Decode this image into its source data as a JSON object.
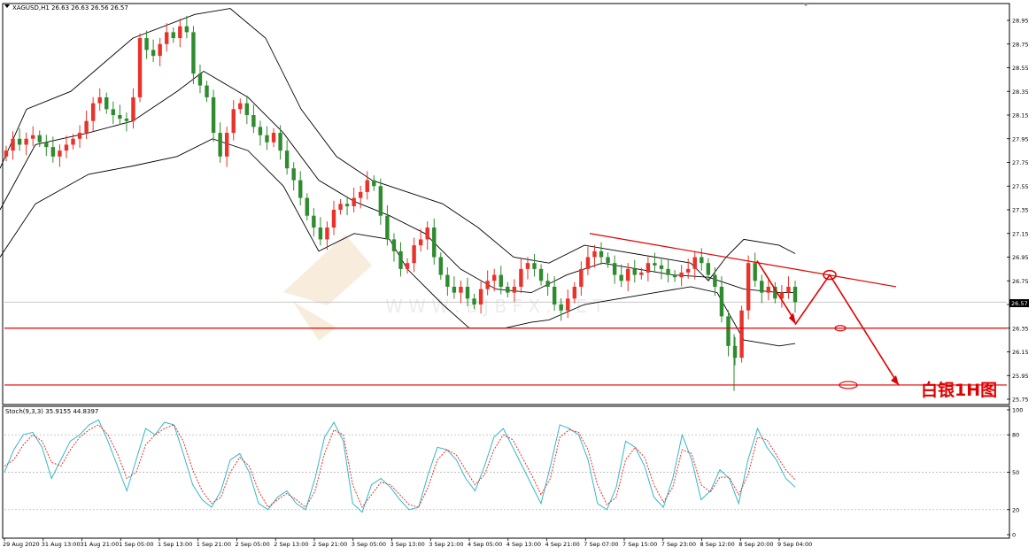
{
  "chart_title": "XAGUSD,H1  26.63 26.63 26.56 26.57",
  "stoch_title": "Stoch(9,3,3) 35.9155 44.8397",
  "annotation": "白银1H图",
  "watermark": "W W W . B J B F X . N E T",
  "colors": {
    "bull": "#e8322a",
    "bear": "#2e8b2e",
    "band": "#000000",
    "annotation": "#e00000",
    "stoch_k": "#35b7c8",
    "stoch_d": "#e8322a"
  },
  "chart_data": [
    {
      "type": "candlestick",
      "symbol": "XAGUSD",
      "timeframe": "H1",
      "ohlc_header": {
        "open": 26.63,
        "high": 26.63,
        "low": 26.56,
        "close": 26.57
      },
      "current_price": 26.57,
      "x_labels": [
        "29 Aug 2020",
        "31 Aug 13:00",
        "31 Aug 21:00",
        "1 Sep 05:00",
        "1 Sep 13:00",
        "1 Sep 21:00",
        "2 Sep 05:00",
        "2 Sep 13:00",
        "2 Sep 21:00",
        "3 Sep 05:00",
        "3 Sep 13:00",
        "3 Sep 21:00",
        "4 Sep 05:00",
        "4 Sep 13:00",
        "4 Sep 21:00",
        "7 Sep 07:00",
        "7 Sep 15:00",
        "7 Sep 23:00",
        "8 Sep 12:00",
        "8 Sep 20:00",
        "9 Sep 04:00"
      ],
      "y_ticks": [
        28.95,
        28.75,
        28.55,
        28.35,
        28.15,
        27.95,
        27.75,
        27.55,
        27.35,
        27.15,
        26.95,
        26.75,
        26.55,
        26.35,
        26.15,
        25.95,
        25.75
      ],
      "ylim": [
        25.73,
        29.04
      ],
      "close": [
        27.85,
        27.95,
        27.9,
        27.95,
        27.98,
        27.92,
        27.88,
        27.8,
        27.85,
        27.9,
        27.95,
        28.0,
        28.1,
        28.25,
        28.3,
        28.2,
        28.15,
        28.12,
        28.1,
        28.3,
        28.8,
        28.7,
        28.65,
        28.75,
        28.85,
        28.8,
        28.9,
        28.85,
        28.5,
        28.4,
        28.3,
        28.0,
        27.8,
        28.0,
        28.2,
        28.25,
        28.15,
        28.05,
        27.98,
        27.92,
        28.0,
        27.85,
        27.7,
        27.6,
        27.45,
        27.3,
        27.2,
        27.1,
        27.2,
        27.35,
        27.4,
        27.38,
        27.45,
        27.5,
        27.6,
        27.55,
        27.3,
        27.1,
        27.0,
        26.85,
        26.9,
        27.05,
        27.1,
        27.2,
        26.95,
        26.8,
        26.7,
        26.65,
        26.7,
        26.6,
        26.55,
        26.68,
        26.75,
        26.8,
        26.7,
        26.65,
        26.7,
        26.85,
        26.9,
        26.85,
        26.75,
        26.7,
        26.55,
        26.5,
        26.6,
        26.7,
        26.85,
        26.95,
        27.0,
        26.95,
        26.9,
        26.8,
        26.75,
        26.85,
        26.8,
        26.82,
        26.9,
        26.88,
        26.85,
        26.8,
        26.78,
        26.82,
        26.85,
        26.95,
        26.9,
        26.8,
        26.7,
        26.45,
        26.2,
        26.1,
        26.5,
        26.9,
        26.75,
        26.65,
        26.7,
        26.6,
        26.65,
        26.7,
        26.57
      ],
      "bollinger": {
        "upper": [
          [
            0,
            27.7
          ],
          [
            30,
            28.2
          ],
          [
            80,
            28.35
          ],
          [
            150,
            28.8
          ],
          [
            220,
            29.0
          ],
          [
            260,
            29.05
          ],
          [
            300,
            28.8
          ],
          [
            340,
            28.2
          ],
          [
            380,
            27.8
          ],
          [
            420,
            27.6
          ],
          [
            460,
            27.5
          ],
          [
            500,
            27.4
          ],
          [
            540,
            27.2
          ],
          [
            580,
            26.95
          ],
          [
            620,
            26.9
          ],
          [
            660,
            27.05
          ],
          [
            700,
            27.0
          ],
          [
            740,
            26.95
          ],
          [
            780,
            26.9
          ],
          [
            800,
            26.75
          ],
          [
            820,
            26.95
          ],
          [
            840,
            27.1
          ],
          [
            880,
            27.05
          ],
          [
            898,
            26.98
          ]
        ],
        "middle": [
          [
            0,
            27.35
          ],
          [
            40,
            27.9
          ],
          [
            100,
            28.0
          ],
          [
            150,
            28.1
          ],
          [
            200,
            28.35
          ],
          [
            230,
            28.52
          ],
          [
            280,
            28.3
          ],
          [
            320,
            28.0
          ],
          [
            360,
            27.6
          ],
          [
            400,
            27.42
          ],
          [
            440,
            27.3
          ],
          [
            480,
            27.15
          ],
          [
            520,
            26.85
          ],
          [
            560,
            26.68
          ],
          [
            600,
            26.65
          ],
          [
            640,
            26.8
          ],
          [
            680,
            26.9
          ],
          [
            720,
            26.85
          ],
          [
            760,
            26.8
          ],
          [
            800,
            26.78
          ],
          [
            840,
            26.68
          ],
          [
            880,
            26.65
          ],
          [
            898,
            26.65
          ]
        ],
        "lower": [
          [
            0,
            26.95
          ],
          [
            40,
            27.4
          ],
          [
            100,
            27.65
          ],
          [
            150,
            27.72
          ],
          [
            200,
            27.8
          ],
          [
            240,
            27.95
          ],
          [
            280,
            27.85
          ],
          [
            320,
            27.55
          ],
          [
            360,
            27.0
          ],
          [
            400,
            27.15
          ],
          [
            440,
            27.1
          ],
          [
            460,
            26.85
          ],
          [
            500,
            26.55
          ],
          [
            530,
            26.35
          ],
          [
            570,
            26.35
          ],
          [
            600,
            26.4
          ],
          [
            620,
            26.42
          ],
          [
            660,
            26.55
          ],
          [
            700,
            26.6
          ],
          [
            740,
            26.65
          ],
          [
            780,
            26.7
          ],
          [
            810,
            26.65
          ],
          [
            840,
            26.25
          ],
          [
            880,
            26.2
          ],
          [
            898,
            26.22
          ]
        ]
      },
      "levels": [
        26.35,
        25.87
      ],
      "trendline": [
        [
          666,
          27.15
        ],
        [
          1012,
          26.7
        ]
      ],
      "forecast_path": [
        [
          898,
          26.38
        ],
        [
          937,
          26.8
        ],
        [
          1015,
          25.87
        ]
      ]
    },
    {
      "type": "line",
      "name": "Stoch(9,3,3)",
      "values_header": {
        "k": 35.9155,
        "d": 44.8397
      },
      "y_ticks": [
        100,
        80,
        50,
        20,
        0
      ],
      "levels": [
        80,
        50,
        20
      ],
      "ylim": [
        0,
        100
      ],
      "series": [
        {
          "values": [
            50,
            68,
            80,
            82,
            70,
            45,
            60,
            75,
            80,
            88,
            92,
            75,
            55,
            35,
            60,
            85,
            80,
            90,
            88,
            65,
            40,
            28,
            22,
            35,
            60,
            65,
            50,
            25,
            20,
            30,
            35,
            25,
            20,
            45,
            78,
            90,
            75,
            25,
            18,
            40,
            45,
            38,
            28,
            20,
            22,
            48,
            70,
            68,
            60,
            45,
            35,
            55,
            78,
            85,
            70,
            55,
            40,
            25,
            55,
            88,
            85,
            80,
            60,
            25,
            20,
            38,
            75,
            70,
            55,
            30,
            22,
            45,
            80,
            60,
            28,
            35,
            52,
            45,
            25,
            60,
            85,
            70,
            60,
            45,
            38
          ]
        },
        {
          "values": [
            55,
            60,
            72,
            80,
            75,
            58,
            55,
            68,
            78,
            84,
            88,
            80,
            65,
            45,
            50,
            72,
            80,
            85,
            88,
            75,
            52,
            35,
            25,
            30,
            50,
            62,
            55,
            35,
            22,
            28,
            33,
            28,
            22,
            35,
            65,
            84,
            80,
            40,
            22,
            32,
            42,
            40,
            32,
            24,
            22,
            38,
            60,
            68,
            64,
            52,
            40,
            48,
            68,
            80,
            76,
            62,
            48,
            32,
            45,
            78,
            84,
            82,
            68,
            40,
            24,
            30,
            60,
            70,
            62,
            40,
            26,
            38,
            68,
            65,
            40,
            34,
            46,
            46,
            32,
            48,
            78,
            76,
            64,
            52,
            44
          ]
        }
      ]
    }
  ]
}
